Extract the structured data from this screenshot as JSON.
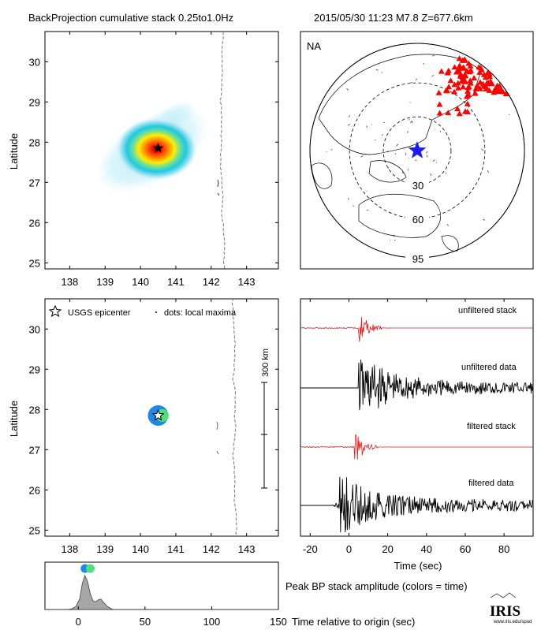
{
  "header": {
    "title": "BackProjection cumulative stack 0.25to1.0Hz",
    "event": "2015/05/30 11:23  M7.8  Z=677.6km"
  },
  "colors": {
    "stack_trace": "#e41a1c",
    "data_trace": "#000000",
    "station": "#ff0000",
    "epicenter_map": "#1a1aff",
    "peak_dot_early": "#1e88e5",
    "peak_dot_late": "#4ee07a",
    "amplitude_fill": "#a6a6a6"
  },
  "chart_data": [
    {
      "name": "cumulative-stack-map",
      "type": "heatmap",
      "ylabel": "Latitude",
      "xticks": [
        "138",
        "139",
        "140",
        "141",
        "142",
        "143"
      ],
      "yticks": [
        "25",
        "26",
        "27",
        "28",
        "29",
        "30"
      ],
      "xlim": [
        137.3,
        143.9
      ],
      "ylim": [
        24.85,
        30.75
      ],
      "peak": {
        "lon": 140.5,
        "lat": 27.85
      },
      "epicenter": {
        "lon": 140.5,
        "lat": 27.85
      },
      "colormap": "jet"
    },
    {
      "name": "station-map",
      "type": "scatter",
      "label": "NA",
      "ring_labels": [
        "30",
        "60",
        "95"
      ],
      "ring_distances_deg": [
        30,
        60,
        95
      ],
      "epicenter_icon": "star-icon",
      "station_icon": "triangle-icon"
    },
    {
      "name": "local-maxima-map",
      "type": "scatter",
      "ylabel": "Latitude",
      "legend": {
        "epicenter": "USGS epicenter",
        "dots": "dots: local maxima"
      },
      "legend_position": "top-left",
      "scale_bar": "300 km",
      "xticks": [
        "138",
        "139",
        "140",
        "141",
        "142",
        "143"
      ],
      "yticks": [
        "25",
        "26",
        "27",
        "28",
        "29",
        "30"
      ],
      "xlim": [
        137.3,
        143.9
      ],
      "ylim": [
        24.85,
        30.75
      ],
      "points": [
        {
          "lon": 140.5,
          "lat": 27.85,
          "time": 5
        },
        {
          "lon": 140.62,
          "lat": 27.85,
          "time": 9
        }
      ]
    },
    {
      "name": "waveforms",
      "type": "line",
      "xlabel": "Time (sec)",
      "xticks": [
        "-20",
        "0",
        "20",
        "40",
        "60",
        "80"
      ],
      "xlim": [
        -25,
        95
      ],
      "series": [
        {
          "name": "unfiltered stack",
          "color": "#e41a1c",
          "onset": 5,
          "kind": "stack"
        },
        {
          "name": "unfiltered data",
          "color": "#000000",
          "onset": 5,
          "kind": "data"
        },
        {
          "name": "filtered stack",
          "color": "#e41a1c",
          "onset": 3,
          "kind": "stack"
        },
        {
          "name": "filtered data",
          "color": "#000000",
          "onset": -5,
          "kind": "data"
        }
      ]
    },
    {
      "name": "peak-amplitude",
      "type": "area",
      "title": "Peak BP stack amplitude (colors = time)",
      "xlabel": "Time relative to origin (sec)",
      "xticks": [
        "0",
        "50",
        "100",
        "150"
      ],
      "xlim": [
        -25,
        150
      ],
      "x": [
        -25,
        -8,
        -5,
        -2,
        1,
        3,
        5,
        7,
        9,
        11,
        13,
        15,
        17,
        19,
        22,
        26,
        150
      ],
      "values": [
        0,
        0,
        0.02,
        0.08,
        0.3,
        0.75,
        0.98,
        0.8,
        0.45,
        0.25,
        0.22,
        0.28,
        0.3,
        0.2,
        0.08,
        0,
        0
      ],
      "markers": [
        {
          "x": 5,
          "color": "#1e88e5"
        },
        {
          "x": 9,
          "color": "#4ee07a"
        }
      ]
    }
  ],
  "footer": {
    "logo": "IRIS",
    "logo_sub": "www.iris.edu/spud"
  }
}
